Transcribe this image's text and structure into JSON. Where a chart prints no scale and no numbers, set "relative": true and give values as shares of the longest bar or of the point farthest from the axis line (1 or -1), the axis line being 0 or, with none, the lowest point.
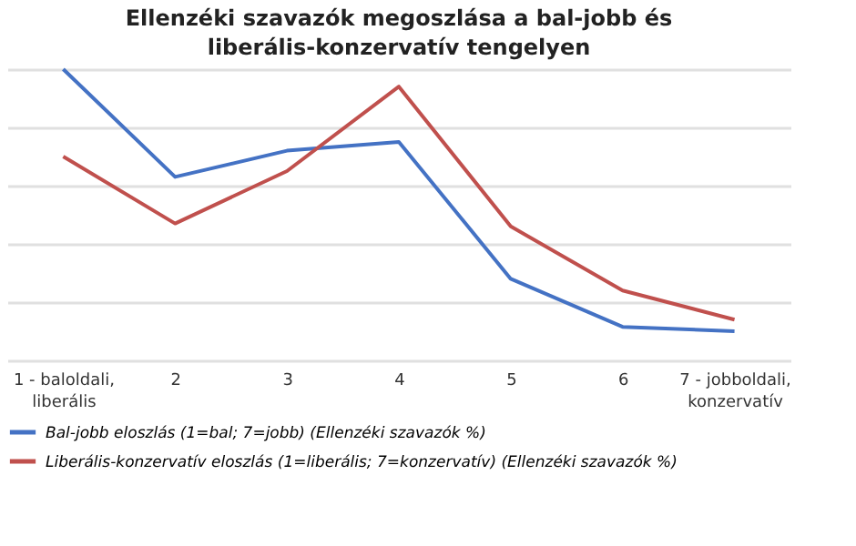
{
  "chart_data": {
    "type": "line",
    "title": "Ellenzéki szavazók megoszlása a bal-jobb és liberális-konzervatív tengelyen",
    "categories": [
      "1 - baloldali, liberális",
      "2",
      "3",
      "4",
      "5",
      "6",
      "7 - jobboldali, konzervatív"
    ],
    "relative": true,
    "grid": "y",
    "legend": "bottom",
    "series": [
      {
        "name": "Bal-jobb eloszlás (1=bal; 7=jobb) (Ellenzéki szavazók %)",
        "color": "#4472c4",
        "values": [
          1.0,
          0.63,
          0.72,
          0.75,
          0.28,
          0.115,
          0.1
        ]
      },
      {
        "name": "Liberális-konzervatív eloszlás (1=liberális; 7=konzervatív) (Ellenzéki szavazók %)",
        "color": "#c0504d",
        "values": [
          0.7,
          0.47,
          0.65,
          0.94,
          0.46,
          0.24,
          0.14
        ]
      }
    ]
  }
}
